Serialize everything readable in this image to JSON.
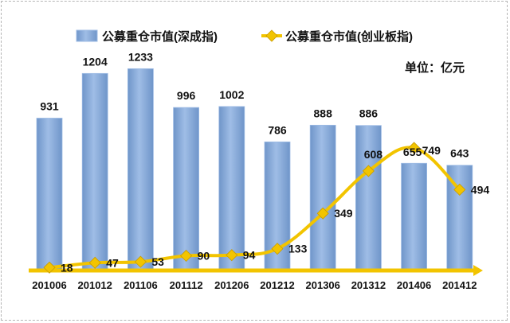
{
  "chart_data": {
    "type": "bar",
    "categories": [
      "201006",
      "201012",
      "201106",
      "201112",
      "201206",
      "201212",
      "201306",
      "201312",
      "201406",
      "201412"
    ],
    "series": [
      {
        "name": "公募重仓市值(深成指)",
        "type": "bar",
        "values": [
          931,
          1204,
          1233,
          996,
          1002,
          786,
          888,
          886,
          655,
          643
        ]
      },
      {
        "name": "公募重仓市值(创业板指)",
        "type": "line",
        "values": [
          18,
          47,
          53,
          90,
          94,
          133,
          349,
          608,
          749,
          494
        ]
      }
    ],
    "unit": "单位：亿元",
    "ylim": [
      0,
      1400
    ],
    "grid": false,
    "legend_position": "top",
    "colors": {
      "bar": "#7fa6d8",
      "bar_edge": "#9dbbe4",
      "line": "#f2c400",
      "axis": "#f2c400",
      "marker": "#f2c400"
    }
  }
}
